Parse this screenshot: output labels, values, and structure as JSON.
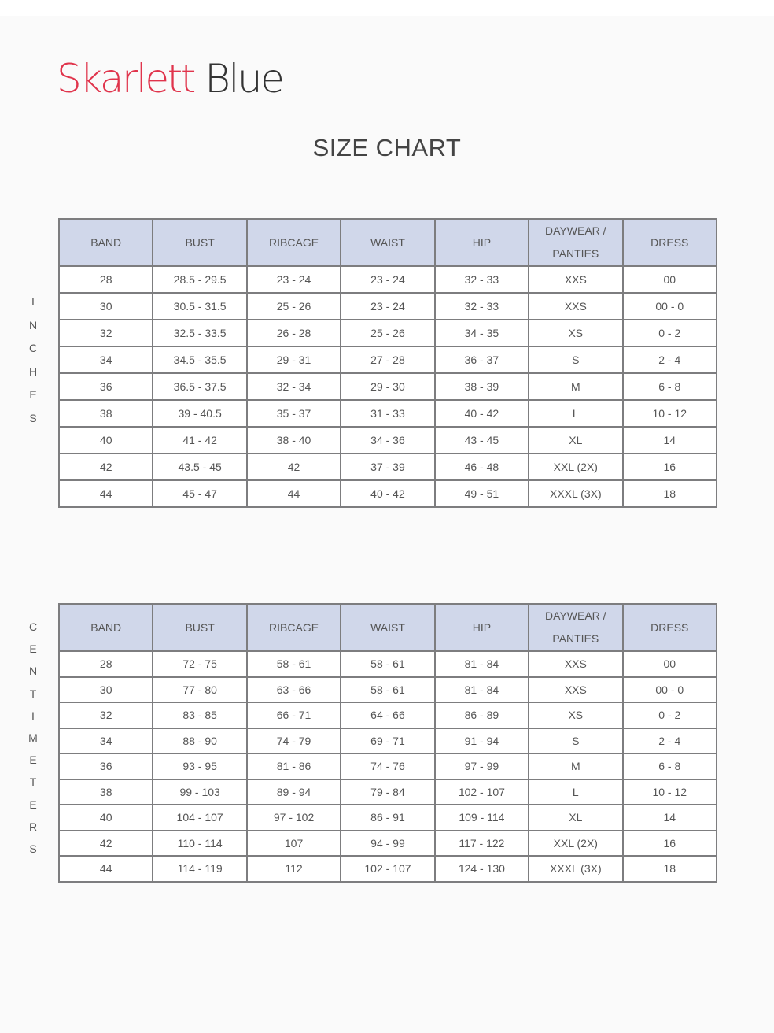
{
  "brand": {
    "name_part1": "Skarlett",
    "name_part2": "Blue",
    "colors": {
      "skarlett": "#e0344c",
      "blue": "#333333"
    }
  },
  "title": "SIZE CHART",
  "header_color": "#d0d7ea",
  "headers": [
    "BAND",
    "BUST",
    "RIBCAGE",
    "WAIST",
    "HIP",
    "DAYWEAR / PANTIES",
    "DRESS"
  ],
  "tables": {
    "inches": {
      "side_label": "INCHES",
      "rows": [
        [
          "28",
          "28.5 - 29.5",
          "23 - 24",
          "23 - 24",
          "32 - 33",
          "XXS",
          "00"
        ],
        [
          "30",
          "30.5 - 31.5",
          "25 - 26",
          "23 - 24",
          "32 - 33",
          "XXS",
          "00 - 0"
        ],
        [
          "32",
          "32.5 - 33.5",
          "26 - 28",
          "25 - 26",
          "34 - 35",
          "XS",
          "0 - 2"
        ],
        [
          "34",
          "34.5 - 35.5",
          "29 - 31",
          "27 - 28",
          "36 - 37",
          "S",
          "2 - 4"
        ],
        [
          "36",
          "36.5 - 37.5",
          "32 - 34",
          "29 - 30",
          "38 - 39",
          "M",
          "6 - 8"
        ],
        [
          "38",
          "39 - 40.5",
          "35 - 37",
          "31 - 33",
          "40 - 42",
          "L",
          "10 - 12"
        ],
        [
          "40",
          "41 - 42",
          "38 - 40",
          "34 - 36",
          "43 - 45",
          "XL",
          "14"
        ],
        [
          "42",
          "43.5 - 45",
          "42",
          "37 - 39",
          "46 - 48",
          "XXL (2X)",
          "16"
        ],
        [
          "44",
          "45 - 47",
          "44",
          "40 - 42",
          "49 - 51",
          "XXXL (3X)",
          "18"
        ]
      ]
    },
    "centimeters": {
      "side_label": "CENTIMETERS",
      "rows": [
        [
          "28",
          "72 - 75",
          "58 - 61",
          "58 - 61",
          "81 - 84",
          "XXS",
          "00"
        ],
        [
          "30",
          "77 - 80",
          "63 - 66",
          "58 - 61",
          "81 - 84",
          "XXS",
          "00 - 0"
        ],
        [
          "32",
          "83 - 85",
          "66 - 71",
          "64 - 66",
          "86 - 89",
          "XS",
          "0 - 2"
        ],
        [
          "34",
          "88 - 90",
          "74 - 79",
          "69 - 71",
          "91 - 94",
          "S",
          "2 - 4"
        ],
        [
          "36",
          "93 - 95",
          "81 - 86",
          "74 - 76",
          "97 - 99",
          "M",
          "6 - 8"
        ],
        [
          "38",
          "99 - 103",
          "89 - 94",
          "79 - 84",
          "102 - 107",
          "L",
          "10 - 12"
        ],
        [
          "40",
          "104 - 107",
          "97 - 102",
          "86 - 91",
          "109 - 114",
          "XL",
          "14"
        ],
        [
          "42",
          "110 - 114",
          "107",
          "94 - 99",
          "117 - 122",
          "XXL (2X)",
          "16"
        ],
        [
          "44",
          "114 - 119",
          "112",
          "102 - 107",
          "124 - 130",
          "XXXL (3X)",
          "18"
        ]
      ]
    }
  }
}
